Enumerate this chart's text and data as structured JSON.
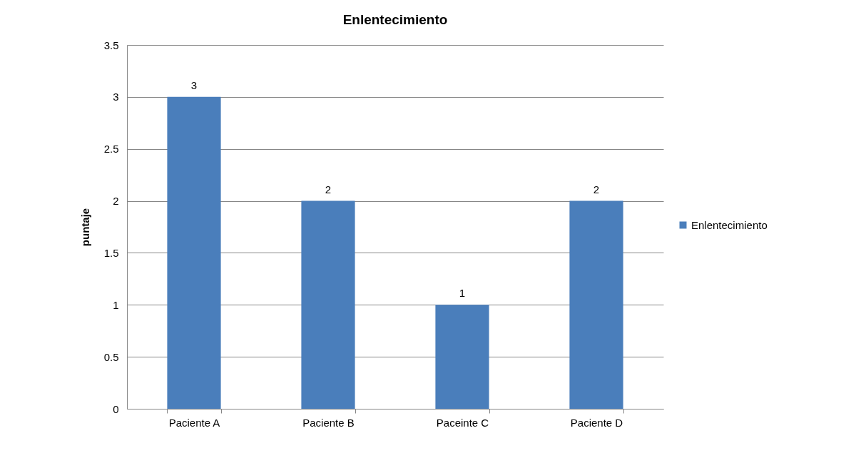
{
  "chart_data": {
    "type": "bar",
    "title": "Enlentecimiento",
    "ylabel": "puntaje",
    "categories": [
      "Paciente A",
      "Paciente B",
      "Paceinte C",
      "Paciente D"
    ],
    "series": [
      {
        "name": "Enlentecimiento",
        "color": "#4a7ebb",
        "values": [
          3,
          2,
          1,
          2
        ]
      }
    ],
    "ylim": [
      0,
      3.5
    ],
    "yticks": [
      0,
      0.5,
      1,
      1.5,
      2,
      2.5,
      3,
      3.5
    ],
    "grid": "y",
    "legend": "right",
    "data_labels": true
  }
}
